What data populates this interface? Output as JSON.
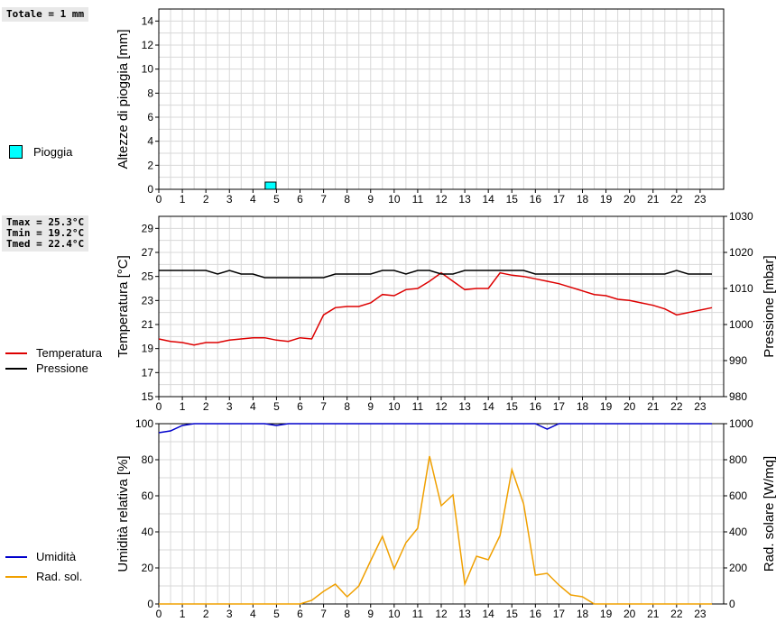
{
  "info": {
    "total_rain": "Totale = 1 mm",
    "tmax": "Tmax = 25.3°C",
    "tmin": "Tmin = 19.2°C",
    "tmed": "Tmed = 22.4°C"
  },
  "legend": {
    "rain": "Pioggia",
    "temperature": "Temperatura",
    "pressure": "Pressione",
    "humidity": "Umidità",
    "radiation": "Rad. sol."
  },
  "colors": {
    "rain": "#00ffff",
    "temperature": "#dd0000",
    "pressure": "#000000",
    "humidity": "#0000cc",
    "radiation": "#f0a000",
    "grid": "#d8d8d8"
  },
  "chart_data": [
    {
      "type": "bar",
      "title": "",
      "ylabel": "Altezze di pioggia [mm]",
      "xlabel": "",
      "xlim": [
        0,
        24
      ],
      "ylim": [
        0,
        15
      ],
      "yticks": [
        0,
        2,
        4,
        6,
        8,
        10,
        12,
        14
      ],
      "xticks": [
        0,
        1,
        2,
        3,
        4,
        5,
        6,
        7,
        8,
        9,
        10,
        11,
        12,
        13,
        14,
        15,
        16,
        17,
        18,
        19,
        20,
        21,
        22,
        23
      ],
      "series": [
        {
          "name": "Pioggia",
          "x": [
            4.75
          ],
          "values": [
            0.6
          ]
        }
      ]
    },
    {
      "type": "line",
      "ylabel": "Temperatura [°C]",
      "y2label": "Pressione [mbar]",
      "xlim": [
        0,
        24
      ],
      "ylim": [
        15,
        30
      ],
      "y2lim": [
        980,
        1030
      ],
      "yticks": [
        15,
        17,
        19,
        21,
        23,
        25,
        27,
        29
      ],
      "y2ticks": [
        980,
        990,
        1000,
        1010,
        1020,
        1030
      ],
      "xticks": [
        0,
        1,
        2,
        3,
        4,
        5,
        6,
        7,
        8,
        9,
        10,
        11,
        12,
        13,
        14,
        15,
        16,
        17,
        18,
        19,
        20,
        21,
        22,
        23
      ],
      "series": [
        {
          "name": "Temperatura",
          "axis": "left",
          "x": [
            0,
            0.5,
            1,
            1.5,
            2,
            2.5,
            3,
            3.5,
            4,
            4.5,
            5,
            5.5,
            6,
            6.5,
            7,
            7.5,
            8,
            8.5,
            9,
            9.5,
            10,
            10.5,
            11,
            11.5,
            12,
            12.5,
            13,
            13.5,
            14,
            14.5,
            15,
            15.5,
            16,
            16.5,
            17,
            17.5,
            18,
            18.5,
            19,
            19.5,
            20,
            20.5,
            21,
            21.5,
            22,
            22.5,
            23,
            23.5
          ],
          "values": [
            19.8,
            19.6,
            19.5,
            19.3,
            19.5,
            19.5,
            19.7,
            19.8,
            19.9,
            19.9,
            19.7,
            19.6,
            19.9,
            19.8,
            21.8,
            22.4,
            22.5,
            22.5,
            22.8,
            23.5,
            23.4,
            23.9,
            24.0,
            24.6,
            25.3,
            24.6,
            23.9,
            24.0,
            24.0,
            25.3,
            25.1,
            25.0,
            24.8,
            24.6,
            24.4,
            24.1,
            23.8,
            23.5,
            23.4,
            23.1,
            23.0,
            22.8,
            22.6,
            22.3,
            21.8,
            22.0,
            22.2,
            22.4
          ]
        },
        {
          "name": "Pressione",
          "axis": "right",
          "x": [
            0,
            0.5,
            1,
            1.5,
            2,
            2.5,
            3,
            3.5,
            4,
            4.5,
            5,
            5.5,
            6,
            6.5,
            7,
            7.5,
            8,
            8.5,
            9,
            9.5,
            10,
            10.5,
            11,
            11.5,
            12,
            12.5,
            13,
            13.5,
            14,
            14.5,
            15,
            15.5,
            16,
            16.5,
            17,
            17.5,
            18,
            18.5,
            19,
            19.5,
            20,
            20.5,
            21,
            21.5,
            22,
            22.5,
            23,
            23.5
          ],
          "values": [
            1015,
            1015,
            1015,
            1015,
            1015,
            1014,
            1015,
            1014,
            1014,
            1013,
            1013,
            1013,
            1013,
            1013,
            1013,
            1014,
            1014,
            1014,
            1014,
            1015,
            1015,
            1014,
            1015,
            1015,
            1014,
            1014,
            1015,
            1015,
            1015,
            1015,
            1015,
            1015,
            1014,
            1014,
            1014,
            1014,
            1014,
            1014,
            1014,
            1014,
            1014,
            1014,
            1014,
            1014,
            1015,
            1014,
            1014,
            1014
          ]
        }
      ]
    },
    {
      "type": "line",
      "ylabel": "Umidità relativa [%]",
      "y2label": "Rad. solare [W/mq]",
      "xlim": [
        0,
        24
      ],
      "ylim": [
        0,
        100
      ],
      "y2lim": [
        0,
        1000
      ],
      "yticks": [
        0,
        20,
        40,
        60,
        80,
        100
      ],
      "y2ticks": [
        0,
        200,
        400,
        600,
        800,
        1000
      ],
      "xticks": [
        0,
        1,
        2,
        3,
        4,
        5,
        6,
        7,
        8,
        9,
        10,
        11,
        12,
        13,
        14,
        15,
        16,
        17,
        18,
        19,
        20,
        21,
        22,
        23
      ],
      "series": [
        {
          "name": "Umidità",
          "axis": "left",
          "x": [
            0,
            0.5,
            1,
            1.5,
            2,
            2.5,
            3,
            3.5,
            4,
            4.5,
            5,
            5.5,
            6,
            6.5,
            7,
            7.5,
            8,
            8.5,
            9,
            9.5,
            10,
            10.5,
            11,
            11.5,
            12,
            12.5,
            13,
            13.5,
            14,
            14.5,
            15,
            15.5,
            16,
            16.5,
            17,
            17.5,
            18,
            18.5,
            19,
            19.5,
            20,
            20.5,
            21,
            21.5,
            22,
            22.5,
            23,
            23.5
          ],
          "values": [
            95,
            96,
            99,
            100,
            100,
            100,
            100,
            100,
            100,
            100,
            99,
            100,
            100,
            100,
            100,
            100,
            100,
            100,
            100,
            100,
            100,
            100,
            100,
            100,
            100,
            100,
            100,
            100,
            100,
            100,
            100,
            100,
            100,
            97,
            100,
            100,
            100,
            100,
            100,
            100,
            100,
            100,
            100,
            100,
            100,
            100,
            100,
            100
          ]
        },
        {
          "name": "Rad. sol.",
          "axis": "right",
          "x": [
            0,
            0.5,
            1,
            1.5,
            2,
            2.5,
            3,
            3.5,
            4,
            4.5,
            5,
            5.5,
            6,
            6.5,
            7,
            7.5,
            8,
            8.5,
            9,
            9.5,
            10,
            10.5,
            11,
            11.5,
            12,
            12.5,
            13,
            13.5,
            14,
            14.5,
            15,
            15.5,
            16,
            16.5,
            17,
            17.5,
            18,
            18.5,
            19,
            19.5,
            20,
            20.5,
            21,
            21.5,
            22,
            22.5,
            23,
            23.5
          ],
          "values": [
            0,
            0,
            0,
            0,
            0,
            0,
            0,
            0,
            0,
            0,
            0,
            0,
            0,
            20,
            70,
            110,
            40,
            100,
            240,
            375,
            195,
            340,
            420,
            820,
            545,
            605,
            110,
            265,
            245,
            380,
            745,
            555,
            160,
            170,
            105,
            50,
            40,
            0,
            0,
            0,
            0,
            0,
            0,
            0,
            0,
            0,
            0,
            0
          ]
        }
      ]
    }
  ]
}
